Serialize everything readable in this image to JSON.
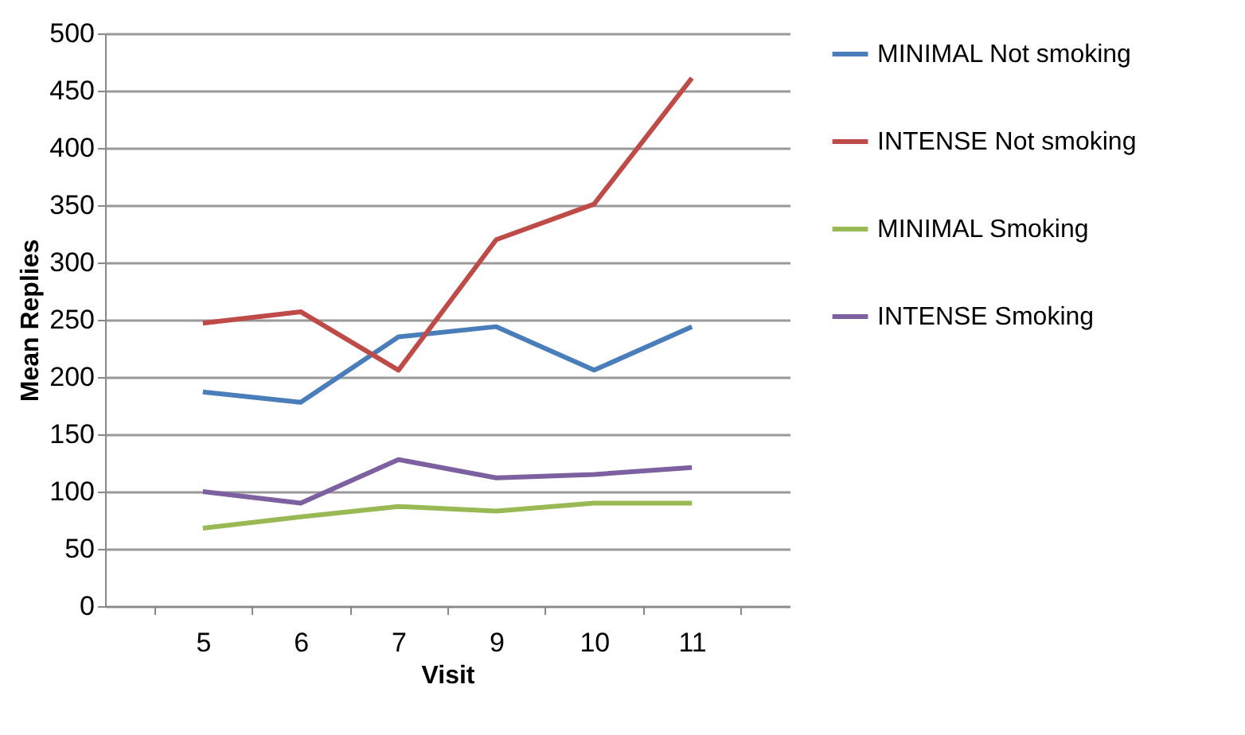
{
  "chart_data": {
    "type": "line",
    "xlabel": "Visit",
    "ylabel": "Mean Replies",
    "categories": [
      "5",
      "6",
      "7",
      "9",
      "10",
      "11"
    ],
    "series": [
      {
        "name": "MINIMAL Not smoking",
        "color": "#4a7ebb",
        "values": [
          187,
          178,
          235,
          244,
          206,
          244
        ]
      },
      {
        "name": "INTENSE Not smoking",
        "color": "#be4b48",
        "values": [
          247,
          257,
          206,
          320,
          351,
          461
        ]
      },
      {
        "name": "MINIMAL Smoking",
        "color": "#98b954",
        "values": [
          68,
          78,
          87,
          83,
          90,
          90
        ]
      },
      {
        "name": "INTENSE Smoking",
        "color": "#7d60a0",
        "values": [
          100,
          90,
          128,
          112,
          115,
          121
        ]
      }
    ],
    "ylim": [
      0,
      500
    ],
    "yticks": [
      0,
      50,
      100,
      150,
      200,
      250,
      300,
      350,
      400,
      450,
      500
    ],
    "grid": "y",
    "legend": "right",
    "marker": "none",
    "line_style": "solid"
  }
}
